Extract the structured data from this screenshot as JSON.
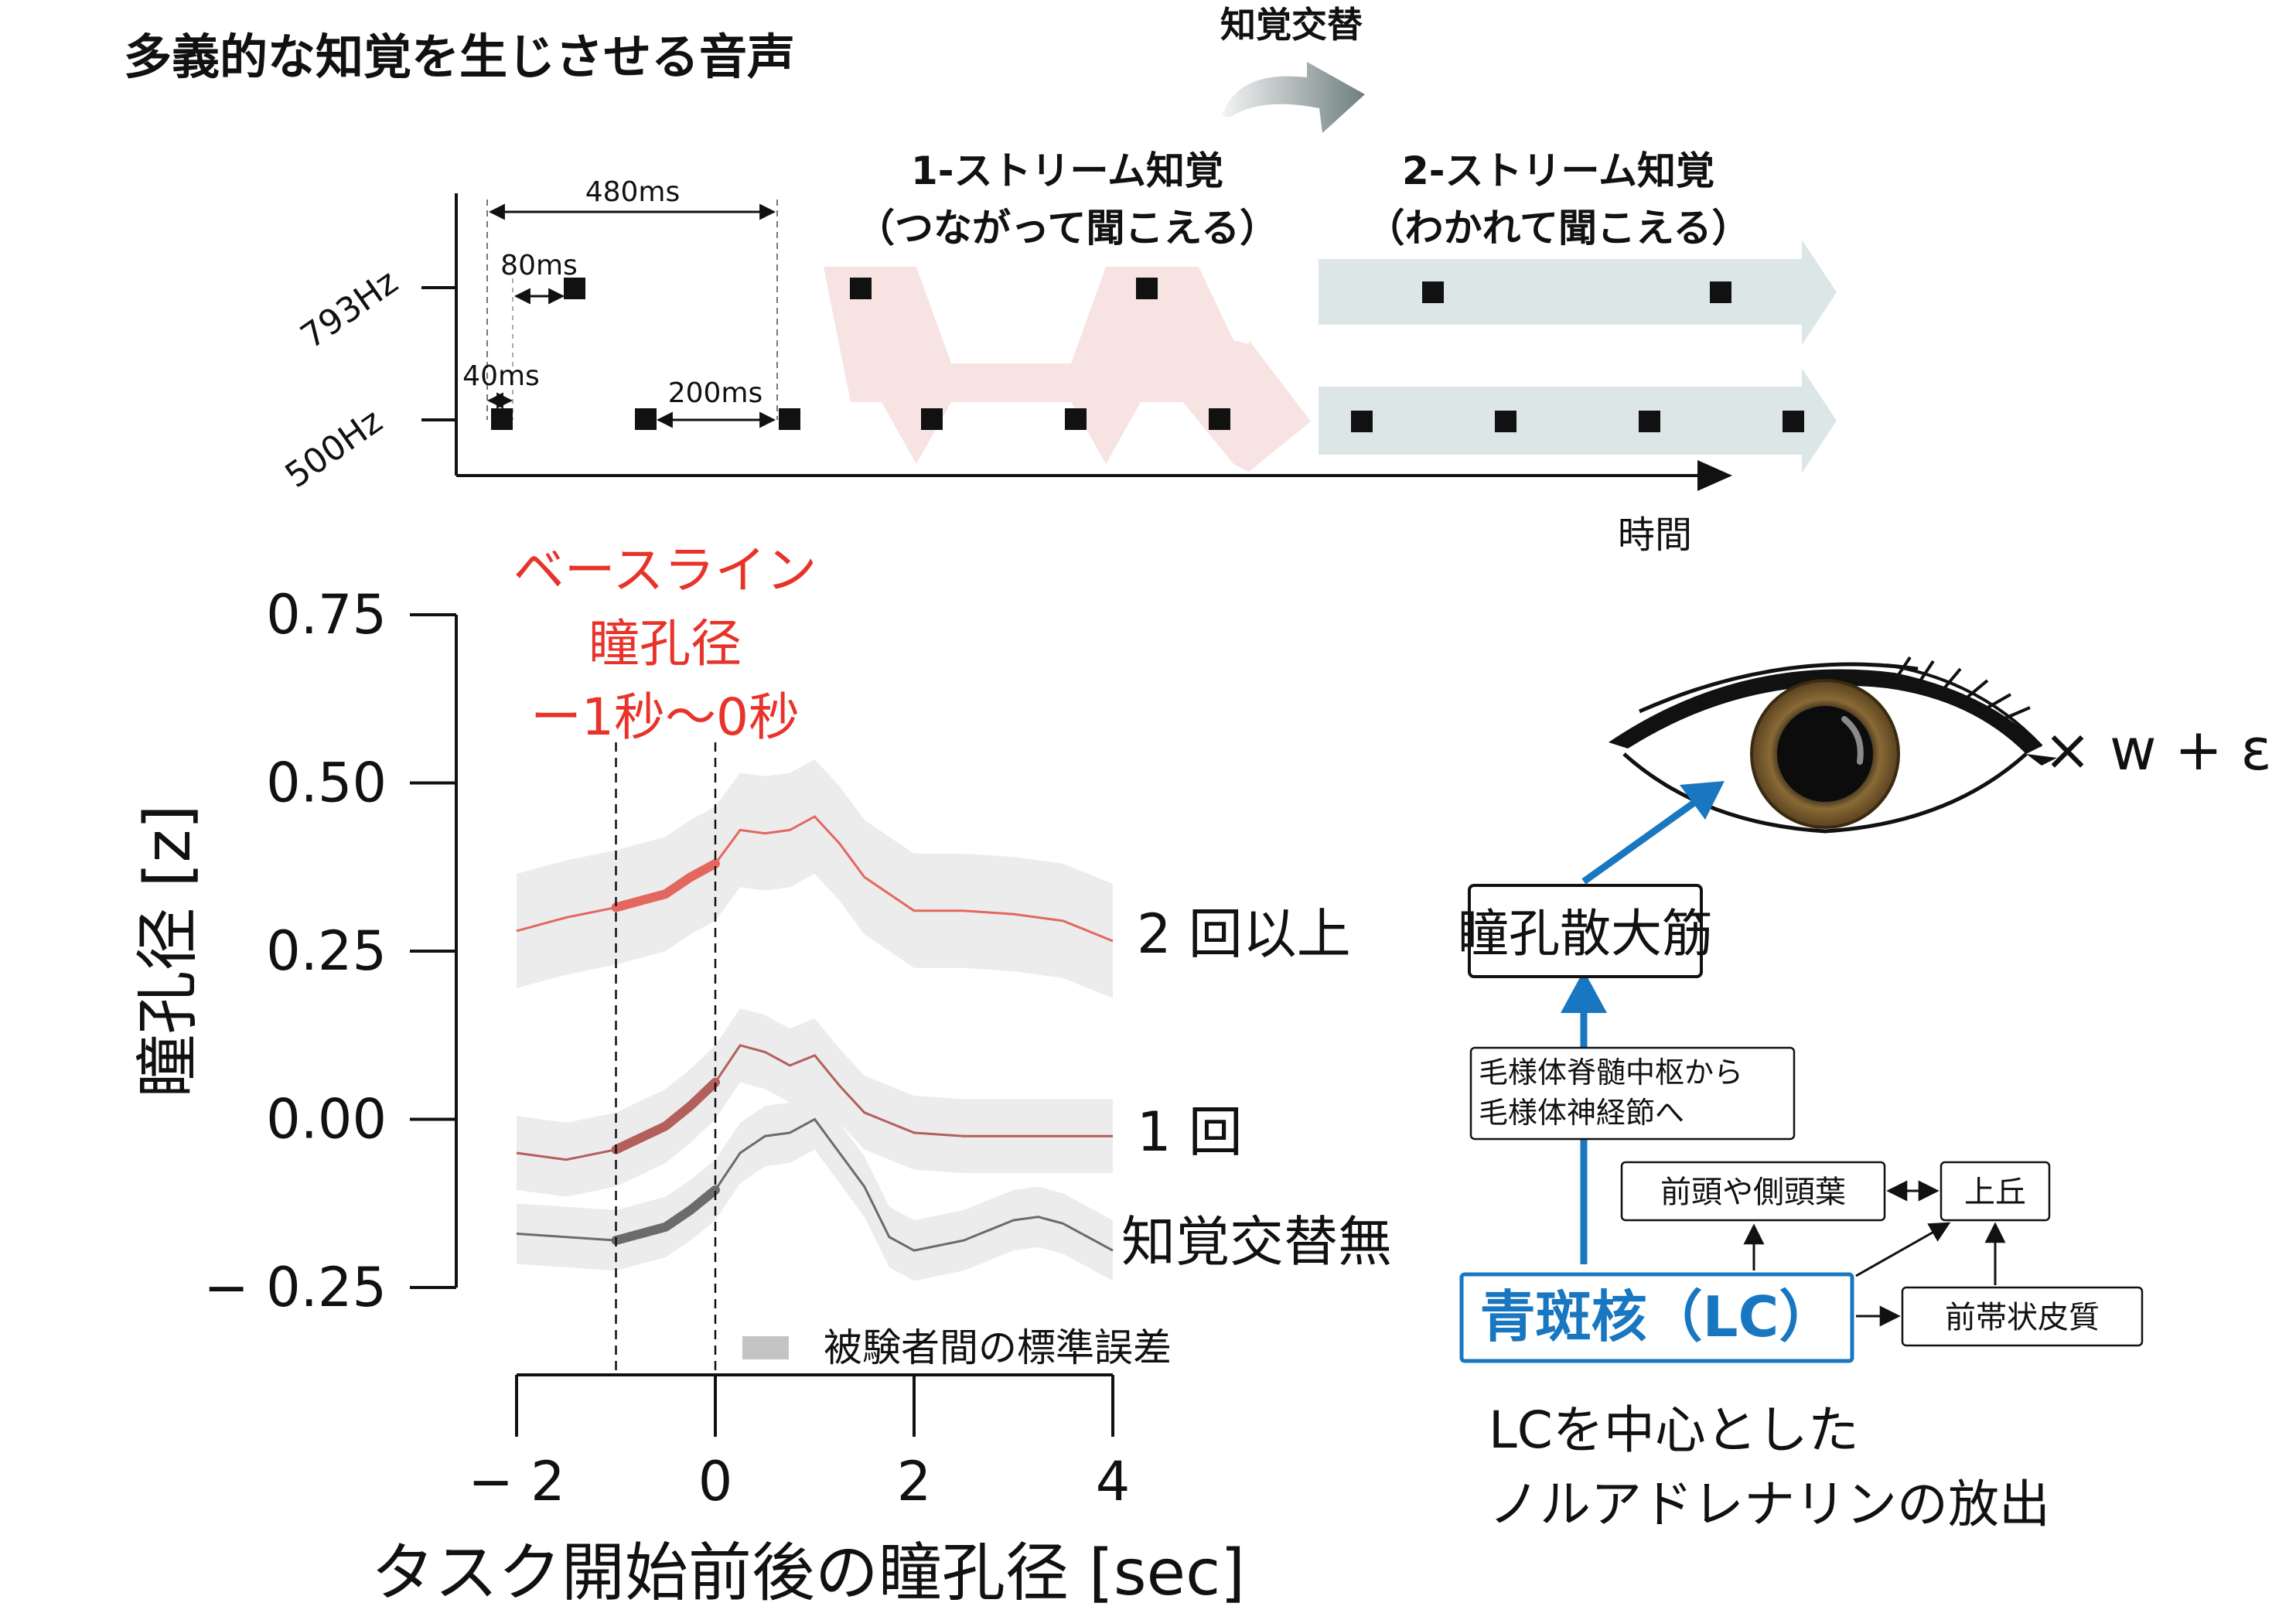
{
  "header": {
    "title": "多義的な知覚を生じさせる音声",
    "alternation_label": "知覚交替",
    "colors": {
      "text": "#111111",
      "arrow_gradient": [
        "#f2f2f2",
        "#6f7f7f"
      ]
    }
  },
  "stimulus": {
    "freq_high": "793Hz",
    "freq_low": "500Hz",
    "dur_480": "480ms",
    "dur_80": "80ms",
    "dur_40": "40ms",
    "dur_200": "200ms",
    "time_label": "時間",
    "one_stream": {
      "title": "1-ストリーム知覚",
      "subtitle": "（つながって聞こえる）",
      "color": "#f6e3e2"
    },
    "two_stream": {
      "title": "2-ストリーム知覚",
      "subtitle": "（わかれて聞こえる）",
      "color": "#dde6e6"
    },
    "tone_color": "#111111"
  },
  "chart_data": {
    "type": "line",
    "ylabel": "瞳孔径 [z]",
    "xlabel": "タスク開始前後の瞳孔径 [sec]",
    "yticks": [
      "0.75",
      "0.50",
      "0.25",
      "0.00",
      "− 0.25"
    ],
    "ytick_values": [
      0.75,
      0.5,
      0.25,
      0.0,
      -0.25
    ],
    "xticks": [
      "− 2",
      "0",
      "2",
      "4"
    ],
    "xtick_values": [
      -2,
      0,
      2,
      4
    ],
    "xlim": [
      -2,
      4
    ],
    "ylim": [
      -0.25,
      0.75
    ],
    "baseline": {
      "label_lines": [
        "ベースライン",
        "瞳孔径",
        "ー1秒〜0秒"
      ],
      "start": -1,
      "end": 0,
      "color": "#e8332a"
    },
    "legend": {
      "label": "被験者間の標準誤差",
      "color": "#c4c4c4"
    },
    "band_color": "#ececec",
    "series": [
      {
        "name": "2 回以上",
        "color": "#e4675f",
        "x": [
          -2,
          -1.5,
          -1,
          -0.5,
          -0.25,
          0,
          0.25,
          0.5,
          0.75,
          1.0,
          1.25,
          1.5,
          2.0,
          2.5,
          3.0,
          3.5,
          4.0
        ],
        "y": [
          0.28,
          0.3,
          0.315,
          0.335,
          0.36,
          0.38,
          0.43,
          0.425,
          0.43,
          0.45,
          0.41,
          0.36,
          0.31,
          0.31,
          0.305,
          0.295,
          0.265
        ],
        "se": 0.085
      },
      {
        "name": "1 回",
        "color": "#b35f5b",
        "x": [
          -2,
          -1.5,
          -1,
          -0.5,
          -0.25,
          0,
          0.25,
          0.5,
          0.75,
          1.0,
          1.25,
          1.5,
          2.0,
          2.5,
          3.0,
          3.5,
          4.0
        ],
        "y": [
          -0.05,
          -0.06,
          -0.045,
          -0.01,
          0.02,
          0.055,
          0.11,
          0.1,
          0.08,
          0.095,
          0.05,
          0.01,
          -0.02,
          -0.025,
          -0.025,
          -0.025,
          -0.025
        ],
        "se": 0.055
      },
      {
        "name": "知覚交替無",
        "color": "#6b6b6b",
        "x": [
          -2,
          -1.5,
          -1,
          -0.5,
          -0.25,
          0,
          0.25,
          0.5,
          0.75,
          1.0,
          1.25,
          1.5,
          1.75,
          2.0,
          2.5,
          3.0,
          3.25,
          3.5,
          4.0
        ],
        "y": [
          -0.17,
          -0.175,
          -0.18,
          -0.16,
          -0.135,
          -0.105,
          -0.05,
          -0.025,
          -0.02,
          0.0,
          -0.05,
          -0.1,
          -0.175,
          -0.195,
          -0.18,
          -0.15,
          -0.145,
          -0.155,
          -0.195
        ],
        "se": 0.045
      }
    ]
  },
  "diagram": {
    "eye_formula": "× w + ε",
    "muscle": "瞳孔散大筋",
    "pathway": [
      "毛様体脊髄中枢から",
      "毛様体神経節へ"
    ],
    "region_frontal": "前頭や側頭葉",
    "region_colliculus": "上丘",
    "region_cingulate": "前帯状皮質",
    "lc": "青斑核（LC）",
    "caption_lines": [
      "LCを中心とした",
      "ノルアドレナリンの放出"
    ],
    "colors": {
      "lc": "#1877c0",
      "arrow": "#1877c0",
      "iris": "#7a5a2a"
    }
  }
}
